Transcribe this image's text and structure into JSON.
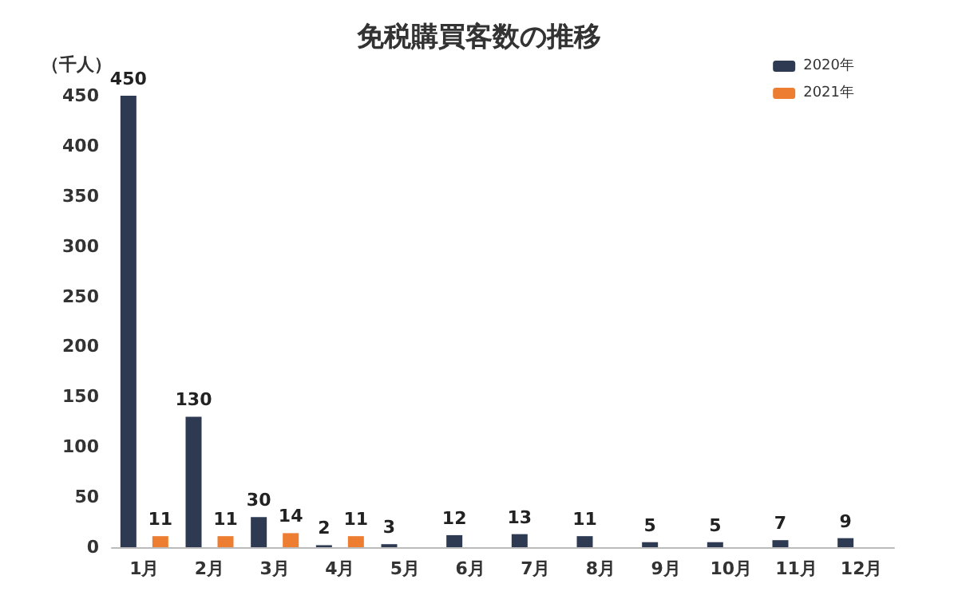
{
  "chart_data": {
    "type": "bar",
    "title": "免税購買客数の推移",
    "ylabel": "（千人）",
    "categories": [
      "1月",
      "2月",
      "3月",
      "4月",
      "5月",
      "6月",
      "7月",
      "8月",
      "9月",
      "10月",
      "11月",
      "12月"
    ],
    "series": [
      {
        "name": "2020年",
        "color": "#2d3a52",
        "values": [
          450,
          130,
          30,
          2,
          3,
          12,
          13,
          11,
          5,
          5,
          7,
          9
        ]
      },
      {
        "name": "2021年",
        "color": "#ed7d31",
        "values": [
          11,
          11,
          14,
          11,
          null,
          null,
          null,
          null,
          null,
          null,
          null,
          null
        ]
      }
    ],
    "ylim": [
      0,
      450
    ],
    "yticks": [
      0,
      50,
      100,
      150,
      200,
      250,
      300,
      350,
      400,
      450
    ],
    "data_labels": true,
    "legend": "top right",
    "grid": false
  }
}
